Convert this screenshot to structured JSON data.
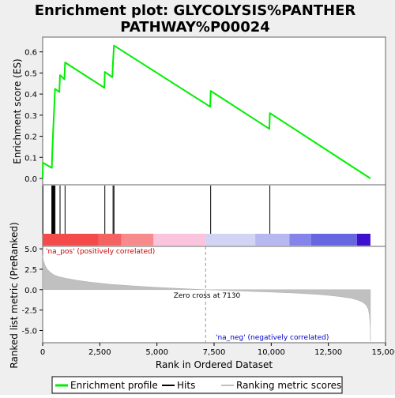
{
  "chart_data": {
    "type": "line",
    "title_line1": "Enrichment plot: GLYCOLYSIS%PANTHER",
    "title_line2": "PATHWAY%P00024",
    "top_panel": {
      "ylabel": "Enrichment score (ES)",
      "ylim": [
        -0.03,
        0.67
      ],
      "yticks": [
        0.0,
        0.1,
        0.2,
        0.3,
        0.4,
        0.5,
        0.6
      ],
      "ytick_labels": [
        "0.0",
        "0.1",
        "0.2",
        "0.3",
        "0.4",
        "0.5",
        "0.6"
      ],
      "series": [
        {
          "name": "Enrichment profile",
          "color": "#00ee00",
          "x": [
            0,
            10,
            400,
            420,
            450,
            480,
            510,
            540,
            730,
            760,
            950,
            980,
            2700,
            2720,
            3050,
            3080,
            3120,
            7330,
            7350,
            9920,
            9940,
            14340
          ],
          "y": [
            0.0,
            0.075,
            0.05,
            0.125,
            0.2,
            0.275,
            0.35,
            0.425,
            0.41,
            0.49,
            0.47,
            0.55,
            0.43,
            0.505,
            0.48,
            0.555,
            0.63,
            0.34,
            0.415,
            0.235,
            0.31,
            0.0
          ]
        }
      ]
    },
    "hits_panel": {
      "hit_positions": [
        10,
        400,
        420,
        450,
        480,
        510,
        540,
        760,
        980,
        2720,
        3080,
        3120,
        7350,
        9940
      ],
      "color_bands": [
        {
          "from": 0,
          "to": 2450,
          "color": "#f44a4a"
        },
        {
          "from": 2450,
          "to": 3450,
          "color": "#f46262"
        },
        {
          "from": 3450,
          "to": 4850,
          "color": "#f78a8a"
        },
        {
          "from": 4850,
          "to": 7150,
          "color": "#f9c4dc"
        },
        {
          "from": 7150,
          "to": 9300,
          "color": "#d3d3f6"
        },
        {
          "from": 9300,
          "to": 10800,
          "color": "#b8b8f0"
        },
        {
          "from": 10800,
          "to": 11750,
          "color": "#8484ea"
        },
        {
          "from": 11750,
          "to": 13750,
          "color": "#6666e0"
        },
        {
          "from": 13750,
          "to": 14340,
          "color": "#3c10cc"
        }
      ]
    },
    "bottom_panel": {
      "ylabel": "Ranked list metric (PreRanked)",
      "xlabel": "Rank in Ordered Dataset",
      "xlim": [
        0,
        15000
      ],
      "ylim": [
        -6.5,
        5.3
      ],
      "yticks": [
        -5.0,
        -2.5,
        0.0,
        2.5,
        5.0
      ],
      "ytick_labels": [
        "-5.0",
        "-2.5",
        "0.0",
        "2.5",
        "5.0"
      ],
      "xticks": [
        0,
        2500,
        5000,
        7500,
        10000,
        12500,
        15000
      ],
      "xtick_labels": [
        "0",
        "2,500",
        "5,000",
        "7,500",
        "10,000",
        "12,500",
        "15,000"
      ],
      "zero_cross": 7130,
      "metric_curve": {
        "x": [
          0,
          30,
          100,
          200,
          350,
          500,
          700,
          1000,
          1500,
          2000,
          2500,
          3000,
          4000,
          5000,
          6000,
          7130,
          8000,
          9000,
          10000,
          11000,
          12000,
          12500,
          13000,
          13500,
          13800,
          14000,
          14150,
          14250,
          14300,
          14330,
          14340
        ],
        "y": [
          4.2,
          3.6,
          3.0,
          2.5,
          2.1,
          1.8,
          1.6,
          1.4,
          1.15,
          0.95,
          0.8,
          0.65,
          0.45,
          0.28,
          0.14,
          0.0,
          -0.1,
          -0.2,
          -0.3,
          -0.42,
          -0.58,
          -0.7,
          -0.85,
          -1.05,
          -1.3,
          -1.55,
          -1.9,
          -2.4,
          -3.2,
          -4.5,
          -6.3
        ]
      },
      "annotations": {
        "pos_label": "'na_pos' (positively correlated)",
        "neg_label": "'na_neg' (negatively correlated)",
        "zero_label": "Zero cross at 7130"
      }
    },
    "legend": [
      {
        "label": "Enrichment profile",
        "color": "#00ee00"
      },
      {
        "label": "Hits",
        "color": "#000000"
      },
      {
        "label": "Ranking metric scores",
        "color": "#c0c0c0"
      }
    ]
  }
}
